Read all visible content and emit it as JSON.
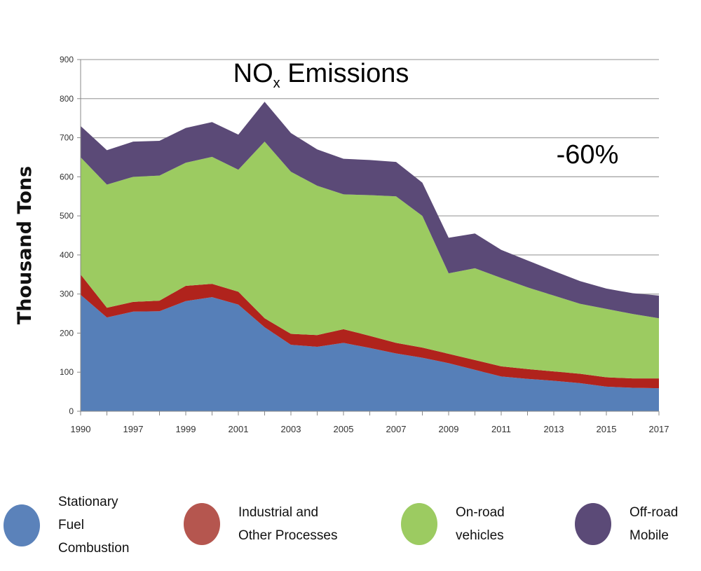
{
  "chart_data": {
    "type": "area",
    "stacked": true,
    "title": "NO",
    "title_subscript": "x",
    "title_rest": " Emissions",
    "annotation": "-60%",
    "ylabel": "Thousand Tons",
    "xlabel": "",
    "ylim": [
      0,
      900
    ],
    "yticks": [
      0,
      100,
      200,
      300,
      400,
      500,
      600,
      700,
      800,
      900
    ],
    "grid": true,
    "legend_position": "bottom",
    "categories": [
      "1990",
      "1996",
      "1997",
      "1998",
      "1999",
      "2000",
      "2001",
      "2002",
      "2003",
      "2004",
      "2005",
      "2006",
      "2007",
      "2008",
      "2009",
      "2010",
      "2011",
      "2012",
      "2013",
      "2014",
      "2015",
      "2016",
      "2017"
    ],
    "xtick_labels": [
      "1990",
      "",
      "1997",
      "",
      "1999",
      "",
      "2001",
      "",
      "2003",
      "",
      "2005",
      "",
      "2007",
      "",
      "2009",
      "",
      "2011",
      "",
      "2013",
      "",
      "2015",
      "",
      "2017"
    ],
    "series": [
      {
        "name": "Stationary\nFuel\nCombustion",
        "color": "#567fb8",
        "legend_color": "#5b82ba",
        "values": [
          298,
          240,
          255,
          256,
          282,
          292,
          273,
          215,
          170,
          165,
          175,
          162,
          148,
          137,
          123,
          106,
          89,
          83,
          78,
          72,
          63,
          60,
          59
        ]
      },
      {
        "name": "Industrial and\nOther Processes",
        "color": "#b0231c",
        "legend_color": "#b5564f",
        "values": [
          52,
          25,
          25,
          27,
          39,
          34,
          33,
          23,
          28,
          30,
          35,
          31,
          27,
          26,
          24,
          25,
          26,
          25,
          24,
          24,
          24,
          24,
          25
        ]
      },
      {
        "name": "On-road\nvehicles",
        "color": "#9ccb61",
        "legend_color": "#9ccb61",
        "values": [
          300,
          315,
          320,
          320,
          315,
          325,
          312,
          452,
          415,
          382,
          345,
          360,
          375,
          337,
          206,
          235,
          226,
          209,
          194,
          179,
          175,
          165,
          154
        ]
      },
      {
        "name": "Off-road\nMobile",
        "color": "#5b4a77",
        "legend_color": "#5b4a77",
        "values": [
          80,
          88,
          90,
          89,
          89,
          89,
          90,
          102,
          99,
          93,
          91,
          90,
          88,
          85,
          91,
          89,
          72,
          69,
          63,
          58,
          52,
          53,
          58
        ]
      }
    ]
  }
}
